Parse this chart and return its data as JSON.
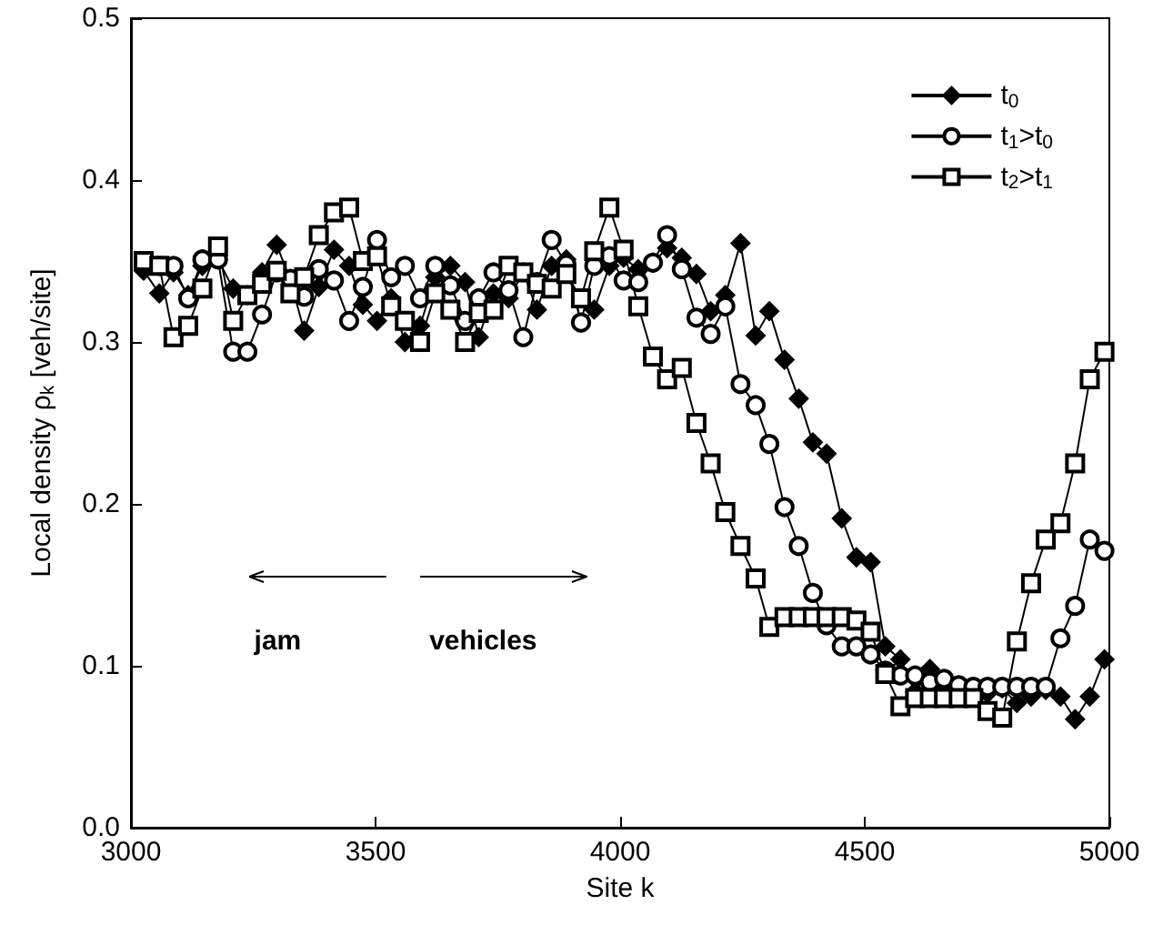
{
  "chart_data": {
    "type": "line",
    "xlabel": "Site k",
    "ylabel": "Local density ρ$_{k}$ [veh/site]",
    "x": [
      3026,
      3058,
      3087,
      3117,
      3146,
      3178,
      3209,
      3238,
      3268,
      3298,
      3326,
      3354,
      3384,
      3415,
      3446,
      3474,
      3503,
      3532,
      3560,
      3591,
      3622,
      3653,
      3683,
      3711,
      3741,
      3772,
      3802,
      3830,
      3860,
      3890,
      3920,
      3947,
      3978,
      4007,
      4037,
      4067,
      4096,
      4126,
      4156,
      4185,
      4215,
      4246,
      4277,
      4305,
      4336,
      4365,
      4394,
      4422,
      4453,
      4483,
      4512,
      4542,
      4573,
      4603,
      4633,
      4662,
      4692,
      4722,
      4751,
      4781,
      4811,
      4840,
      4870,
      4900,
      4930,
      4960,
      4990
    ],
    "series": [
      {
        "name": "t$_{0}$",
        "color": "#000000",
        "marker": "diamond",
        "values": [
          0.344,
          0.33,
          0.343,
          0.329,
          0.347,
          0.351,
          0.333,
          0.329,
          0.343,
          0.36,
          0.338,
          0.307,
          0.334,
          0.357,
          0.347,
          0.323,
          0.313,
          0.327,
          0.3,
          0.31,
          0.34,
          0.347,
          0.337,
          0.303,
          0.33,
          0.327,
          0.343,
          0.32,
          0.347,
          0.351,
          0.312,
          0.32,
          0.347,
          0.352,
          0.345,
          0.349,
          0.358,
          0.352,
          0.342,
          0.319,
          0.329,
          0.361,
          0.304,
          0.319,
          0.289,
          0.265,
          0.238,
          0.231,
          0.191,
          0.167,
          0.164,
          0.112,
          0.104,
          0.084,
          0.098,
          0.087,
          0.081,
          0.081,
          0.083,
          0.086,
          0.077,
          0.081,
          0.085,
          0.081,
          0.067,
          0.081,
          0.104
        ]
      },
      {
        "name": "t$_{1}$>t$_{0}$",
        "color": "#000000",
        "marker": "circle",
        "values": [
          0.349,
          0.347,
          0.347,
          0.327,
          0.351,
          0.351,
          0.294,
          0.294,
          0.317,
          0.343,
          0.339,
          0.328,
          0.345,
          0.338,
          0.313,
          0.334,
          0.363,
          0.34,
          0.347,
          0.327,
          0.347,
          0.335,
          0.313,
          0.327,
          0.343,
          0.332,
          0.303,
          0.337,
          0.363,
          0.348,
          0.312,
          0.347,
          0.353,
          0.338,
          0.337,
          0.349,
          0.366,
          0.345,
          0.315,
          0.305,
          0.322,
          0.274,
          0.261,
          0.237,
          0.198,
          0.174,
          0.145,
          0.125,
          0.112,
          0.112,
          0.107,
          0.097,
          0.094,
          0.094,
          0.09,
          0.092,
          0.088,
          0.087,
          0.087,
          0.087,
          0.087,
          0.087,
          0.087,
          0.117,
          0.137,
          0.178,
          0.171
        ]
      },
      {
        "name": "t$_{2}$>t$_{1}$",
        "color": "#000000",
        "marker": "square",
        "values": [
          0.35,
          0.347,
          0.303,
          0.31,
          0.333,
          0.359,
          0.313,
          0.329,
          0.336,
          0.344,
          0.33,
          0.34,
          0.366,
          0.38,
          0.383,
          0.35,
          0.353,
          0.322,
          0.313,
          0.3,
          0.33,
          0.32,
          0.3,
          0.318,
          0.32,
          0.347,
          0.343,
          0.336,
          0.333,
          0.342,
          0.327,
          0.356,
          0.383,
          0.357,
          0.322,
          0.291,
          0.277,
          0.284,
          0.25,
          0.225,
          0.195,
          0.174,
          0.154,
          0.124,
          0.13,
          0.13,
          0.13,
          0.13,
          0.13,
          0.128,
          0.121,
          0.095,
          0.075,
          0.08,
          0.08,
          0.08,
          0.08,
          0.08,
          0.072,
          0.068,
          0.115,
          0.151,
          0.178,
          0.188,
          0.225,
          0.277,
          0.294
        ]
      }
    ],
    "annotations": [
      "jam",
      "vehicles"
    ],
    "xlim": [
      3000,
      5000
    ],
    "xticks": [
      3000,
      3500,
      4000,
      4500,
      5000
    ],
    "ylim": [
      0,
      0.5
    ],
    "yticks": [
      {
        "value": 0,
        "label": "0.0"
      },
      {
        "value": 0.1,
        "label": "0.1"
      },
      {
        "value": 0.2,
        "label": "0.2"
      },
      {
        "value": 0.3,
        "label": "0.3"
      },
      {
        "value": 0.4,
        "label": "0.4"
      },
      {
        "value": 0.5,
        "label": "0.5"
      }
    ],
    "grid": false,
    "legend": "top right",
    "line_style": "solid"
  }
}
